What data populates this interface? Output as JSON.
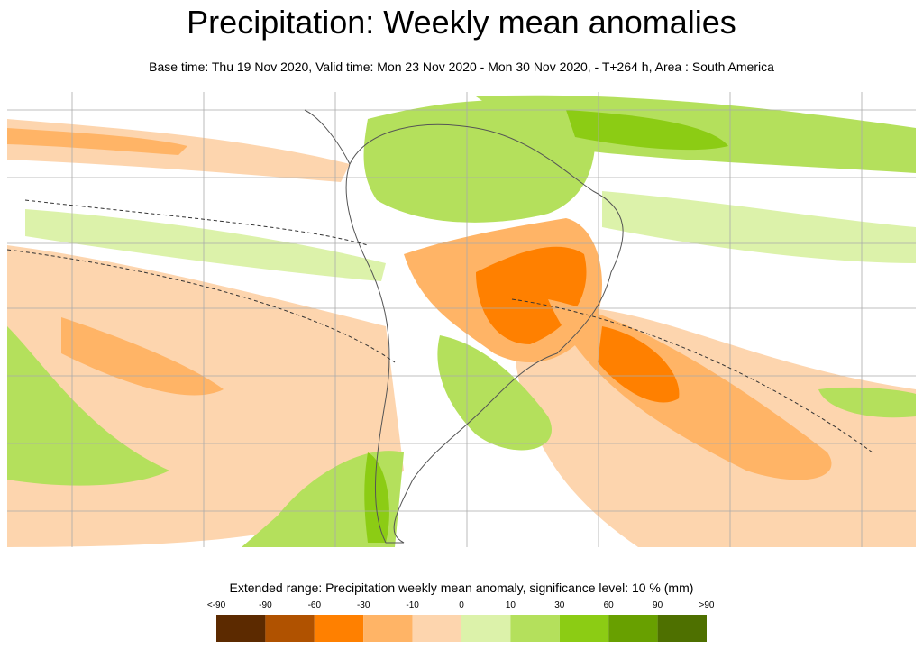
{
  "header": {
    "title": "Precipitation: Weekly mean anomalies",
    "subtitle": "Base time: Thu 19 Nov 2020, Valid time: Mon 23 Nov 2020 - Mon 30 Nov 2020, - T+264 h, Area : South America"
  },
  "legend": {
    "title": "Extended range: Precipitation weekly mean anomaly, significance level: 10 % (mm)",
    "labels": [
      "<-90",
      "-90",
      "-60",
      "-30",
      "-10",
      "0",
      "10",
      "30",
      "60",
      "90",
      ">90"
    ],
    "colors": [
      "#5c2a00",
      "#b05200",
      "#ff8000",
      "#ffb466",
      "#fdd5ae",
      "#dcf2aa",
      "#b4e05c",
      "#8ccc14",
      "#68a000",
      "#4e7000"
    ]
  }
}
